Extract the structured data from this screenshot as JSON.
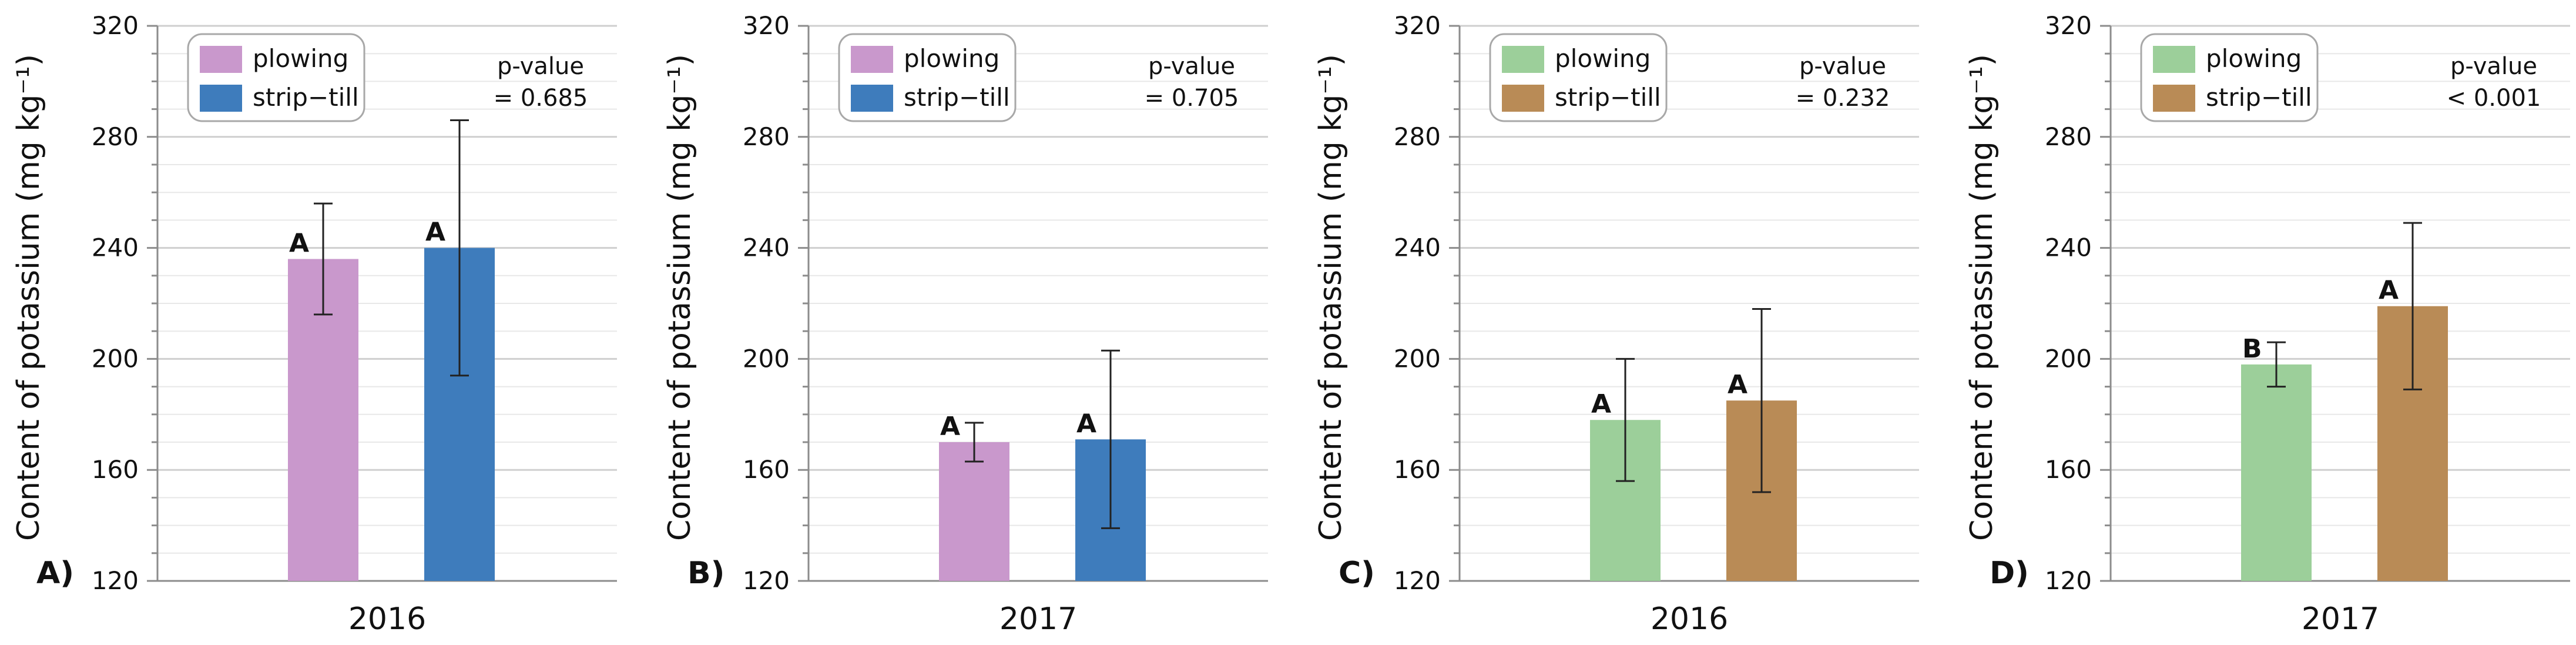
{
  "chart_data": [
    {
      "panel_label": "A)",
      "type": "bar",
      "categories": [
        "2016"
      ],
      "series": [
        {
          "name": "plowing",
          "values": [
            236
          ],
          "error": [
            20
          ],
          "letter": "A"
        },
        {
          "name": "strip−till",
          "values": [
            240
          ],
          "error": [
            46
          ],
          "letter": "A"
        }
      ],
      "colors": [
        "#c998cc",
        "#3e7cbc"
      ],
      "title": "",
      "xlabel": "2016",
      "ylabel": "Content of potassium (mg kg⁻¹)",
      "ylim": [
        120,
        320
      ],
      "yticks": [
        "120",
        "160",
        "200",
        "240",
        "280",
        "320"
      ],
      "pvalue_label": "p-value",
      "pvalue_text": "= 0.685",
      "grid": true,
      "legend": "top-left"
    },
    {
      "panel_label": "B)",
      "type": "bar",
      "categories": [
        "2017"
      ],
      "series": [
        {
          "name": "plowing",
          "values": [
            170
          ],
          "error": [
            7
          ],
          "letter": "A"
        },
        {
          "name": "strip−till",
          "values": [
            171
          ],
          "error": [
            32
          ],
          "letter": "A"
        }
      ],
      "colors": [
        "#c998cc",
        "#3e7cbc"
      ],
      "title": "",
      "xlabel": "2017",
      "ylabel": "Content of potassium (mg kg⁻¹)",
      "ylim": [
        120,
        320
      ],
      "yticks": [
        "120",
        "160",
        "200",
        "240",
        "280",
        "320"
      ],
      "pvalue_label": "p-value",
      "pvalue_text": "= 0.705",
      "grid": true,
      "legend": "top-left"
    },
    {
      "panel_label": "C)",
      "type": "bar",
      "categories": [
        "2016"
      ],
      "series": [
        {
          "name": "plowing",
          "values": [
            178
          ],
          "error": [
            22
          ],
          "letter": "A"
        },
        {
          "name": "strip−till",
          "values": [
            185
          ],
          "error": [
            33
          ],
          "letter": "A"
        }
      ],
      "colors": [
        "#9ccf9a",
        "#b98b56"
      ],
      "title": "",
      "xlabel": "2016",
      "ylabel": "Content of potassium (mg kg⁻¹)",
      "ylim": [
        120,
        320
      ],
      "yticks": [
        "120",
        "160",
        "200",
        "240",
        "280",
        "320"
      ],
      "pvalue_label": "p-value",
      "pvalue_text": "= 0.232",
      "grid": true,
      "legend": "top-left"
    },
    {
      "panel_label": "D)",
      "type": "bar",
      "categories": [
        "2017"
      ],
      "series": [
        {
          "name": "plowing",
          "values": [
            198
          ],
          "error": [
            8
          ],
          "letter": "B"
        },
        {
          "name": "strip−till",
          "values": [
            219
          ],
          "error": [
            30
          ],
          "letter": "A"
        }
      ],
      "colors": [
        "#9ccf9a",
        "#b98b56"
      ],
      "title": "",
      "xlabel": "2017",
      "ylabel": "Content of potassium (mg kg⁻¹)",
      "ylim": [
        120,
        320
      ],
      "yticks": [
        "120",
        "160",
        "200",
        "240",
        "280",
        "320"
      ],
      "pvalue_label": "p-value",
      "pvalue_text": "< 0.001",
      "grid": true,
      "legend": "top-left"
    }
  ]
}
